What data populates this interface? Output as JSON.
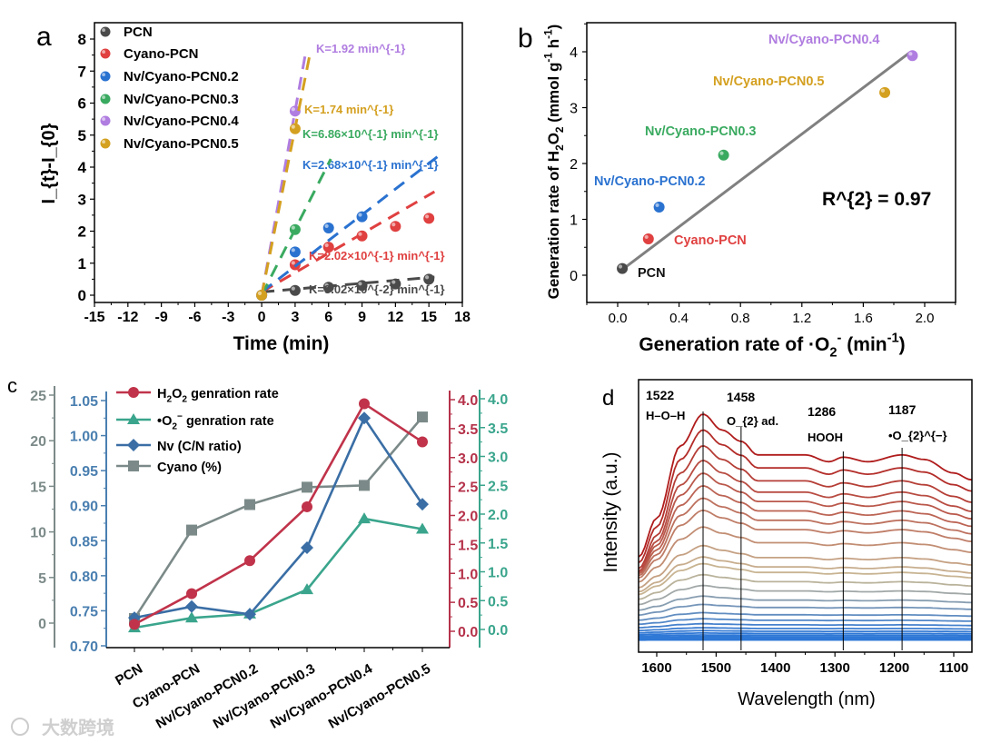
{
  "chart_data": [
    {
      "panel": "a",
      "type": "scatter",
      "panel_label": "a",
      "xlabel": "Time (min)",
      "ylabel": "I_{t}-I_{0}",
      "xlim": [
        -15,
        18
      ],
      "ylim": [
        -0.4,
        8.5
      ],
      "xticks": [
        -15,
        -12,
        -9,
        -6,
        -3,
        0,
        3,
        6,
        9,
        12,
        15,
        18
      ],
      "yticks": [
        0,
        1,
        2,
        3,
        4,
        5,
        6,
        7,
        8
      ],
      "legend_position": "top-left",
      "series": [
        {
          "name": "PCN",
          "color": "#4a4a4a",
          "x": [
            0,
            3,
            6,
            9,
            12,
            15
          ],
          "y": [
            0,
            0.15,
            0.25,
            0.3,
            0.35,
            0.5
          ],
          "k": 0.0302,
          "fit_end": 15.5,
          "k_label": "K=3.02×10^{-2} min^{-1}"
        },
        {
          "name": "Cyano-PCN",
          "color": "#e04040",
          "x": [
            0,
            3,
            6,
            9,
            12,
            15
          ],
          "y": [
            0,
            0.95,
            1.5,
            1.85,
            2.15,
            2.4
          ],
          "k": 0.202,
          "fit_end": 15.5,
          "k_label": "K=2.02×10^{-1} min^{-1}"
        },
        {
          "name": "Nv/Cyano-PCN0.2",
          "color": "#2a72d0",
          "x": [
            0,
            3,
            6,
            9
          ],
          "y": [
            0,
            1.35,
            2.1,
            2.45
          ],
          "k": 0.268,
          "fit_end": 16,
          "k_label": "K=2.68×10^{-1} min^{-1}"
        },
        {
          "name": "Nv/Cyano-PCN0.3",
          "color": "#3aaa60",
          "x": [
            0,
            3
          ],
          "y": [
            0,
            2.05
          ],
          "k": 0.686,
          "fit_end": 6.2,
          "k_label": "K=6.86×10^{-1} min^{-1}"
        },
        {
          "name": "Nv/Cyano-PCN0.4",
          "color": "#b07de0",
          "x": [
            0,
            3
          ],
          "y": [
            0,
            5.75
          ],
          "k": 1.92,
          "fit_end": 4.0,
          "k_label": "K=1.92 min^{-1}"
        },
        {
          "name": "Nv/Cyano-PCN0.5",
          "color": "#d4a020",
          "x": [
            0,
            3
          ],
          "y": [
            0,
            5.2
          ],
          "k": 1.74,
          "fit_end": 4.3,
          "k_label": "K=1.74 min^{-1}"
        }
      ]
    },
    {
      "panel": "b",
      "type": "scatter",
      "panel_label": "b",
      "xlabel": "Generation rate of ·O_{2}^{-} (min^{-1})",
      "ylabel": "Generation rate of H_{2}O_{2} (mmol g^{-1} h^{-1})",
      "xlim": [
        -0.2,
        2.2
      ],
      "ylim": [
        -0.5,
        4.5
      ],
      "xticks": [
        "0.0",
        "0.4",
        "0.8",
        "1.2",
        "1.6",
        "2.0"
      ],
      "yticks": [
        0,
        1,
        2,
        3,
        4
      ],
      "annotation": "R^{2} = 0.97",
      "fit_line": {
        "x": [
          0.03,
          1.9
        ],
        "y": [
          0.1,
          3.98
        ],
        "color": "#808080"
      },
      "points": [
        {
          "name": "PCN",
          "x": 0.03,
          "y": 0.12,
          "color": "#4a4a4a",
          "label_color": "#111111"
        },
        {
          "name": "Cyano-PCN",
          "x": 0.2,
          "y": 0.65,
          "color": "#e04040",
          "label_color": "#e04040"
        },
        {
          "name": "Nv/Cyano-PCN0.2",
          "x": 0.27,
          "y": 1.22,
          "color": "#2a72d0",
          "label_color": "#2a72d0"
        },
        {
          "name": "Nv/Cyano-PCN0.3",
          "x": 0.69,
          "y": 2.15,
          "color": "#3aaa60",
          "label_color": "#3aaa60"
        },
        {
          "name": "Nv/Cyano-PCN0.4",
          "x": 1.92,
          "y": 3.93,
          "color": "#b07de0",
          "label_color": "#b07de0"
        },
        {
          "name": "Nv/Cyano-PCN0.5",
          "x": 1.74,
          "y": 3.27,
          "color": "#d4a020",
          "label_color": "#d4a020"
        }
      ]
    },
    {
      "panel": "c",
      "type": "line",
      "panel_label": "c",
      "categories": [
        "PCN",
        "Cyano-PCN",
        "Nv/Cyano-PCN0.2",
        "Nv/Cyano-PCN0.3",
        "Nv/Cyano-PCN0.4",
        "Nv/Cyano-PCN0.5"
      ],
      "legend_position": "top-left",
      "axes": {
        "cyano": {
          "ticks": [
            "0",
            "5",
            "10",
            "15",
            "20",
            "25"
          ],
          "range": [
            -2.5,
            25
          ],
          "color": "#7b8a88"
        },
        "nv": {
          "ticks": [
            "0.70",
            "0.75",
            "0.80",
            "0.85",
            "0.90",
            "0.95",
            "1.00",
            "1.05"
          ],
          "range": [
            0.7,
            1.065
          ],
          "color": "#4a7fb0"
        },
        "h2o2": {
          "ticks": [
            "0.0",
            "0.5",
            "1.0",
            "1.5",
            "2.0",
            "2.5",
            "3.0",
            "3.5",
            "4.0"
          ],
          "range": [
            -0.2,
            4.2
          ],
          "color": "#b5324a"
        },
        "o2": {
          "ticks": [
            "0.0",
            "0.5",
            "1.0",
            "1.5",
            "2.0",
            "2.5",
            "3.0",
            "3.5",
            "4.0"
          ],
          "range": [
            -0.2,
            4.2
          ],
          "color": "#3aa58c"
        }
      },
      "series": [
        {
          "name": "H_{2}O_{2} genration rate",
          "axis": "h2o2",
          "marker": "circle",
          "color": "#c0334a",
          "values": [
            0.12,
            0.65,
            1.22,
            2.15,
            3.93,
            3.27
          ]
        },
        {
          "name": "•O_{2}^{−} genration rate",
          "axis": "o2",
          "marker": "triangle",
          "color": "#3aa58c",
          "values": [
            0.03,
            0.2,
            0.27,
            0.69,
            1.92,
            1.74
          ]
        },
        {
          "name": "Nv (C/N ratio)",
          "axis": "nv",
          "marker": "diamond",
          "color": "#3a6ea5",
          "values": [
            0.74,
            0.756,
            0.745,
            0.84,
            1.025,
            0.902
          ]
        },
        {
          "name": "Cyano (%)",
          "axis": "cyano",
          "marker": "square",
          "color": "#7b8a88",
          "values": [
            0.5,
            10.2,
            13.0,
            14.9,
            15.1,
            22.6
          ]
        }
      ]
    },
    {
      "panel": "d",
      "type": "line",
      "panel_label": "d",
      "xlabel": "Wavelength (nm)",
      "ylabel": "Intensity (a.u.)",
      "xlim": [
        1630,
        1070
      ],
      "xticks": [
        1600,
        1500,
        1400,
        1300,
        1200,
        1100
      ],
      "annotations": [
        {
          "wavelength": 1522,
          "value": "1522",
          "assignment": "H–O–H"
        },
        {
          "wavelength": 1458,
          "value": "1458",
          "assignment": "O_{2} ad."
        },
        {
          "wavelength": 1286,
          "value": "1286",
          "assignment": "HOOH"
        },
        {
          "wavelength": 1187,
          "value": "1187",
          "assignment": "•O_{2}^{−}"
        }
      ],
      "profile": {
        "wavelength": [
          1630,
          1600,
          1560,
          1522,
          1490,
          1458,
          1430,
          1400,
          1350,
          1310,
          1286,
          1245,
          1187,
          1150,
          1100,
          1070
        ],
        "relative_intensity": [
          0.37,
          0.54,
          0.86,
          1.0,
          0.93,
          0.88,
          0.82,
          0.82,
          0.82,
          0.79,
          0.81,
          0.79,
          0.82,
          0.8,
          0.74,
          0.71
        ]
      },
      "curve_scales": [
        1,
        0.93,
        0.86,
        0.8,
        0.75,
        0.7,
        0.65,
        0.6,
        0.53,
        0.45,
        0.4,
        0.37,
        0.32,
        0.27,
        0.22,
        0.18,
        0.14,
        0.11,
        0.085,
        0.065,
        0.05,
        0.038,
        0.028,
        0.02,
        0.013,
        0.007,
        0.002
      ],
      "colors": {
        "high": "#b01c1c",
        "mid": "#c9b996",
        "low": "#2f78d6"
      }
    }
  ],
  "watermark": "大数跨境"
}
